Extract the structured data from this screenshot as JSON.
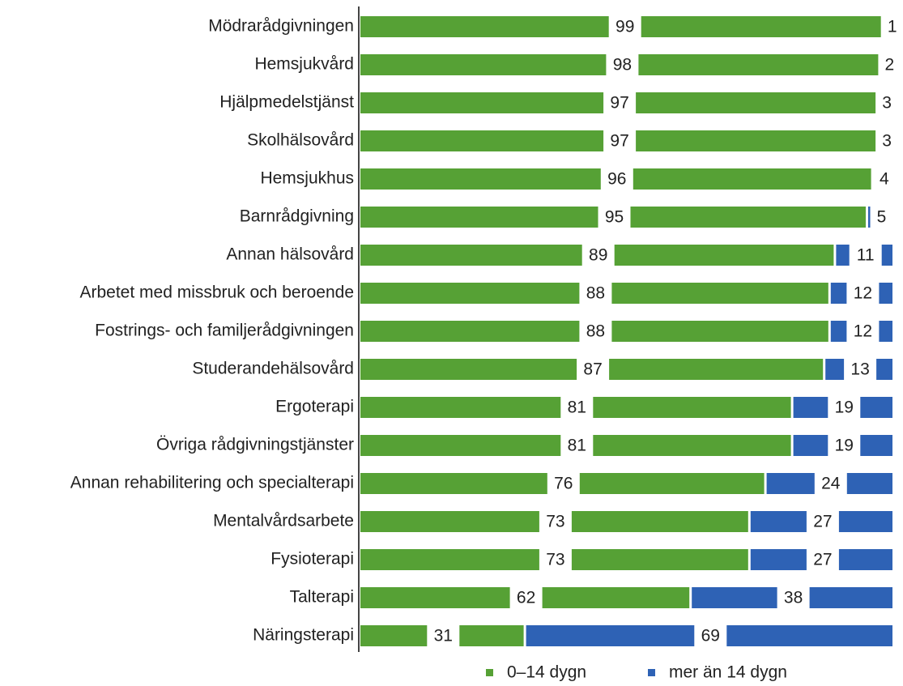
{
  "chart_data": {
    "type": "stacked-bar-horizontal",
    "categories": [
      "Mödrarådgivningen",
      "Hemsjukvård",
      "Hjälpmedelstjänst",
      "Skolhälsovård",
      "Hemsjukhus",
      "Barnrådgivning",
      "Annan hälsovård",
      "Arbetet med missbruk och beroende",
      "Fostrings- och familjerådgivningen",
      "Studerandehälsovård",
      "Ergoterapi",
      "Övriga rådgivningstjänster",
      "Annan rehabilitering och specialterapi",
      "Mentalvårdsarbete",
      "Fysioterapi",
      "Talterapi",
      "Näringsterapi"
    ],
    "series": [
      {
        "name": "0–14 dygn",
        "color": "#56a135",
        "values": [
          99,
          98,
          97,
          97,
          96,
          95,
          89,
          88,
          88,
          87,
          81,
          81,
          76,
          73,
          73,
          62,
          31
        ]
      },
      {
        "name": "mer än 14 dygn",
        "color": "#2e62b5",
        "values": [
          1,
          2,
          3,
          3,
          4,
          5,
          11,
          12,
          12,
          13,
          19,
          19,
          24,
          27,
          27,
          38,
          69
        ]
      }
    ],
    "xlim": [
      0,
      100
    ],
    "legend": "bottom"
  }
}
